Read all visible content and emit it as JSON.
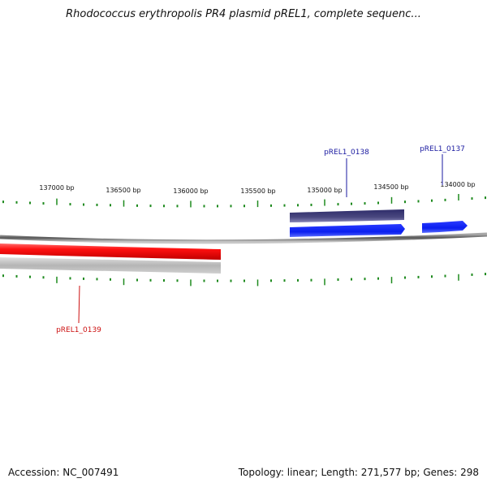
{
  "title": "Rhodococcus erythropolis PR4 plasmid pREL1, complete sequenc...",
  "ruler": {
    "labels": [
      "137000 bp",
      "136500 bp",
      "136000 bp",
      "135500 bp",
      "135000 bp",
      "134500 bp",
      "134000 bp"
    ],
    "tick_color": "#1e8a1e"
  },
  "genes": [
    {
      "name": "pREL1_0137",
      "label_color": "#1a1aa0",
      "strand": "reverse",
      "color": "#0a1ef0"
    },
    {
      "name": "pREL1_0138",
      "label_color": "#1a1aa0",
      "strand": "reverse",
      "color": "#0a1ef0",
      "protein_color": "#4a4880"
    },
    {
      "name": "pREL1_0139",
      "label_color": "#cc1010",
      "strand": "forward",
      "color": "#ff1010",
      "protein_color": "#b8b8b8"
    }
  ],
  "footer": {
    "accession": "Accession: NC_007491",
    "summary": "Topology: linear; Length: 271,577 bp; Genes: 298"
  }
}
